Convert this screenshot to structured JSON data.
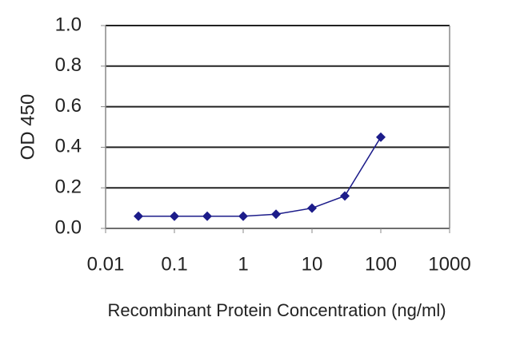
{
  "chart_data": {
    "type": "line",
    "xlabel": "Recombinant Protein Concentration (ng/ml)",
    "ylabel": "OD 450",
    "x": [
      0.03,
      0.1,
      0.3,
      1,
      3,
      10,
      30,
      100
    ],
    "values": [
      0.06,
      0.06,
      0.06,
      0.06,
      0.07,
      0.1,
      0.16,
      0.45
    ],
    "color": "#1c1c8a",
    "xscale": "log",
    "xlim": [
      0.01,
      1000
    ],
    "xticks": [
      0.01,
      0.1,
      1,
      10,
      100,
      1000
    ],
    "ylim": [
      0,
      1
    ],
    "yticks": [
      {
        "value": 0,
        "label": "0.0"
      },
      0.2,
      0.4,
      0.6,
      0.8,
      {
        "value": 1,
        "label": "1.0"
      }
    ],
    "grid": true
  }
}
